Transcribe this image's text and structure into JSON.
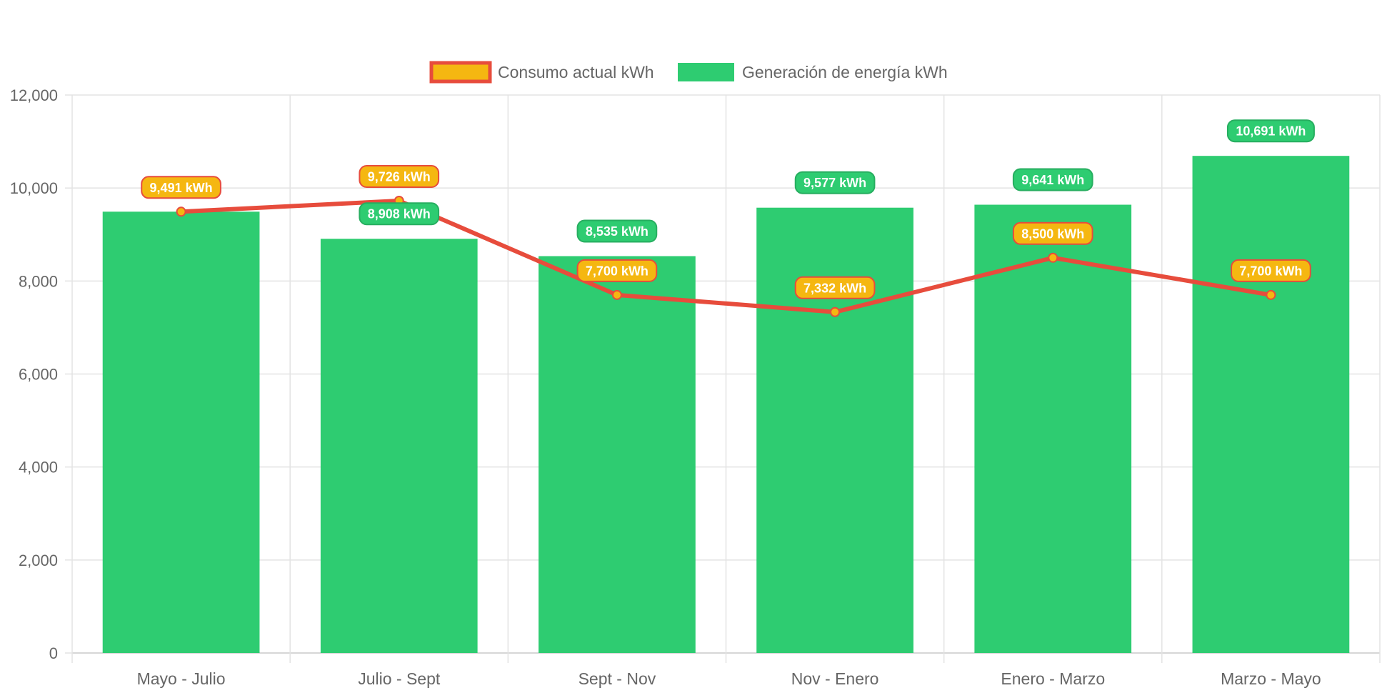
{
  "chart_data": {
    "type": "bar",
    "categories": [
      "Mayo - Julio",
      "Julio - Sept",
      "Sept - Nov",
      "Nov - Enero",
      "Enero - Marzo",
      "Marzo - Mayo"
    ],
    "series": [
      {
        "name": "Consumo actual kWh",
        "type": "line",
        "values": [
          9491,
          9726,
          7700,
          7332,
          8500,
          7700
        ],
        "labels": [
          "9,491 kWh",
          "9,726 kWh",
          "7,700 kWh",
          "7,332 kWh",
          "8,500 kWh",
          "7,700 kWh"
        ],
        "line_color": "#E74C3C",
        "fill_color": "#F5B711"
      },
      {
        "name": "Generación de energía kWh",
        "type": "bar",
        "values": [
          9491,
          8908,
          8535,
          9577,
          9641,
          10691
        ],
        "labels": [
          "",
          "8,908 kWh",
          "8,535 kWh",
          "9,577 kWh",
          "9,641 kWh",
          "10,691 kWh"
        ],
        "color": "#2ECC71",
        "label_border": "#27AE60"
      }
    ],
    "ylim": [
      0,
      12000
    ],
    "yticks": [
      "0",
      "2,000",
      "4,000",
      "6,000",
      "8,000",
      "10,000",
      "12,000"
    ],
    "grid": true,
    "legend_position": "top"
  }
}
